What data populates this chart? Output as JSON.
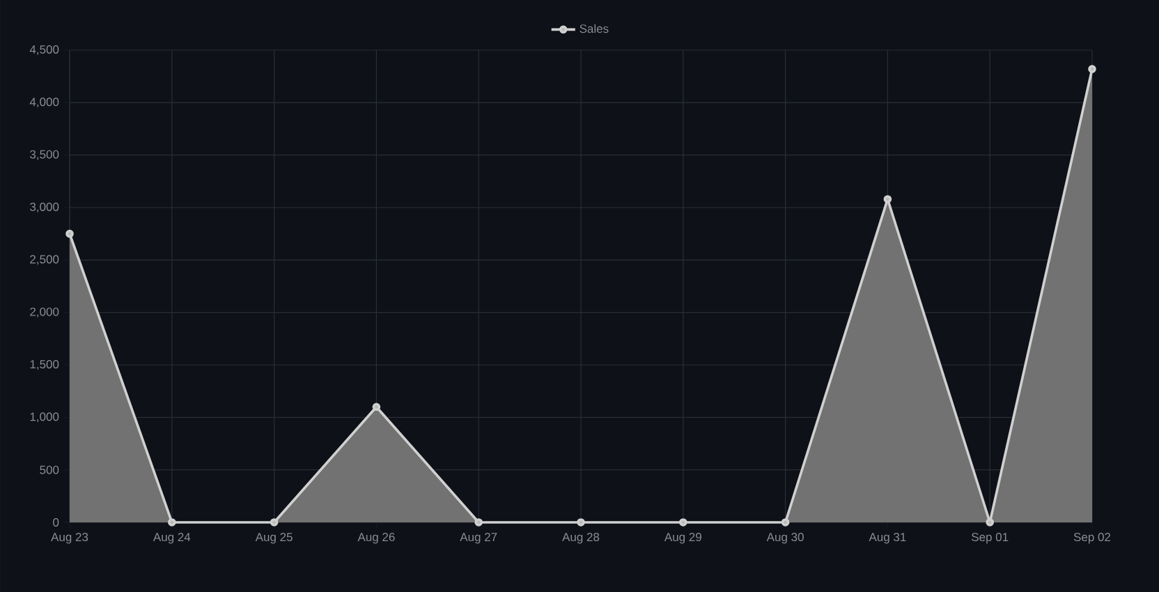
{
  "chart_data": {
    "type": "area",
    "categories": [
      "Aug 23",
      "Aug 24",
      "Aug 25",
      "Aug 26",
      "Aug 27",
      "Aug 28",
      "Aug 29",
      "Aug 30",
      "Aug 31",
      "Sep 01",
      "Sep 02"
    ],
    "series": [
      {
        "name": "Sales",
        "color": "#d0d0d0",
        "values": [
          2750,
          0,
          0,
          1100,
          0,
          0,
          0,
          0,
          3080,
          0,
          4320
        ]
      }
    ],
    "ylim": [
      0,
      4500
    ],
    "yticks": [
      {
        "value": 0,
        "label": "0"
      },
      {
        "value": 500,
        "label": "500"
      },
      {
        "value": 1000,
        "label": "1,000"
      },
      {
        "value": 1500,
        "label": "1,500"
      },
      {
        "value": 2000,
        "label": "2,000"
      },
      {
        "value": 2500,
        "label": "2,500"
      },
      {
        "value": 3000,
        "label": "3,000"
      },
      {
        "value": 3500,
        "label": "3,500"
      },
      {
        "value": 4000,
        "label": "4,000"
      },
      {
        "value": 4500,
        "label": "4,500"
      }
    ],
    "grid": true,
    "legend": "top",
    "marker": "circle",
    "line_style": "solid"
  }
}
